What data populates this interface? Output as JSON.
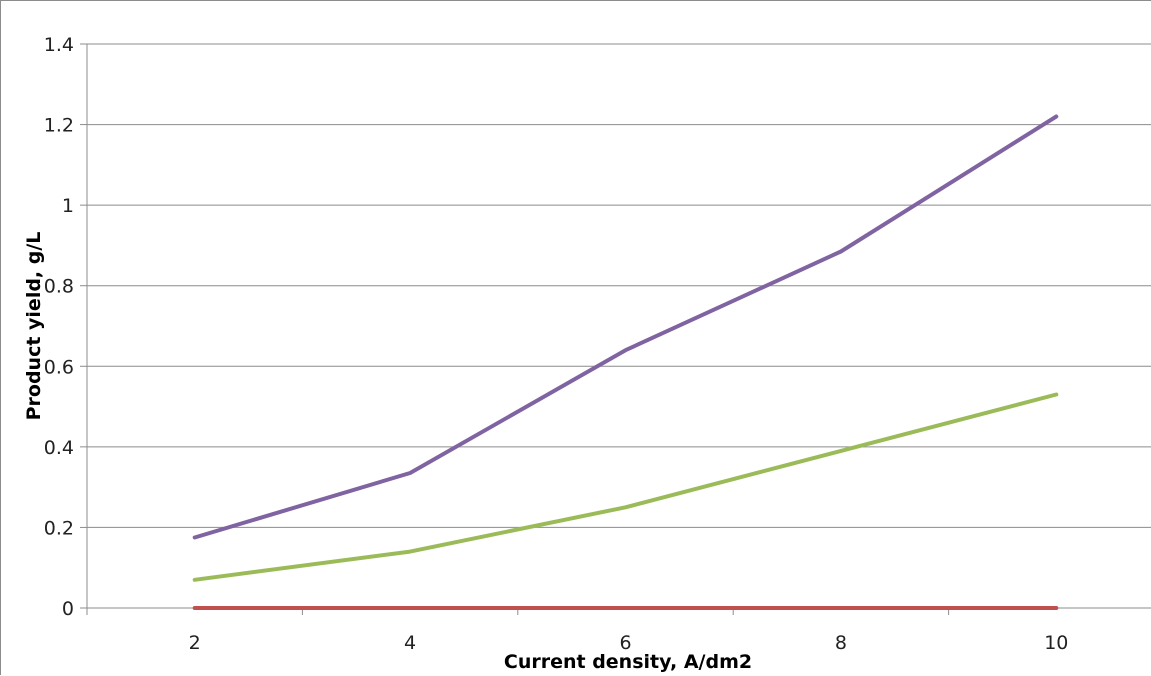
{
  "chart_data": {
    "type": "line",
    "title": "",
    "xlabel": "Current density, A/dm2",
    "ylabel": "Product yield, g/L",
    "x": [
      2,
      4,
      6,
      8,
      10
    ],
    "series": [
      {
        "values": [
          0,
          0,
          0,
          0,
          0
        ],
        "color": "#c0504d"
      },
      {
        "values": [
          0.07,
          0.14,
          0.25,
          0.39,
          0.53
        ],
        "color": "#9bbb59"
      },
      {
        "values": [
          0.175,
          0.335,
          0.64,
          0.885,
          1.22
        ],
        "color": "#8064a2"
      }
    ],
    "xlim": [
      1,
      11
    ],
    "ylim": [
      0,
      1.4
    ],
    "x_ticks": [
      "2",
      "4",
      "6",
      "8",
      "10"
    ],
    "y_ticks": [
      "0",
      "0.2",
      "0.4",
      "0.6",
      "0.8",
      "1",
      "1.2",
      "1.4"
    ],
    "grid": "horizontal",
    "legend": "none"
  }
}
